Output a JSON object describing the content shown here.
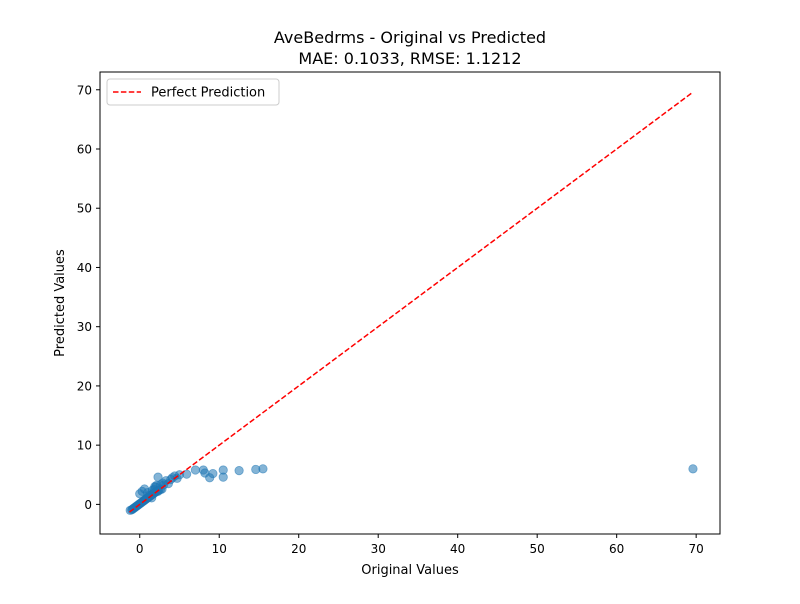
{
  "chart_data": {
    "type": "scatter",
    "title": "AveBedrms - Original vs Predicted",
    "subtitle": "MAE: 0.1033, RMSE: 1.1212",
    "xlabel": "Original Values",
    "ylabel": "Predicted Values",
    "xlim": [
      -5,
      73
    ],
    "ylim": [
      -5,
      73
    ],
    "xticks": [
      0,
      10,
      20,
      30,
      40,
      50,
      60,
      70
    ],
    "yticks": [
      0,
      10,
      20,
      30,
      40,
      50,
      60,
      70
    ],
    "grid": false,
    "legend": {
      "location": "upper-left",
      "entries": [
        "Perfect Prediction"
      ]
    },
    "reference_line": {
      "name": "Perfect Prediction",
      "from": [
        -1.3,
        -1.3
      ],
      "to": [
        69.6,
        69.6
      ],
      "color": "#ff0000",
      "style": "dashed"
    },
    "series": [
      {
        "color": "#1f77b4",
        "x": [
          -1.2,
          -1.0,
          -0.9,
          -0.8,
          -0.7,
          -0.6,
          -0.5,
          -0.4,
          -0.3,
          -0.2,
          -0.1,
          0.0,
          0.1,
          0.2,
          0.3,
          0.4,
          0.5,
          0.6,
          0.7,
          0.8,
          0.9,
          1.0,
          1.1,
          1.2,
          1.3,
          1.4,
          1.5,
          1.6,
          1.7,
          1.8,
          1.9,
          2.0,
          2.1,
          2.2,
          2.4,
          2.6,
          2.8,
          0.0,
          0.3,
          0.6,
          1.0,
          1.3,
          1.6,
          1.9,
          2.1,
          2.3,
          2.0,
          1.8,
          1.5,
          2.3,
          2.6,
          2.9,
          3.0,
          3.3,
          3.6,
          3.9,
          4.1,
          4.4,
          4.7,
          5.0,
          5.9,
          7.0,
          8.0,
          8.2,
          8.8,
          9.2,
          10.5,
          10.5,
          12.5,
          14.6,
          15.5,
          69.6
        ],
        "y": [
          -1.0,
          -0.9,
          -0.8,
          -0.7,
          -0.6,
          -0.5,
          -0.4,
          -0.3,
          -0.2,
          -0.1,
          0.0,
          0.1,
          0.2,
          0.3,
          0.4,
          0.5,
          0.6,
          0.7,
          0.8,
          0.9,
          1.0,
          1.1,
          1.2,
          1.3,
          1.4,
          1.5,
          1.6,
          1.7,
          1.8,
          1.9,
          2.0,
          2.1,
          2.2,
          2.3,
          2.4,
          2.5,
          2.6,
          1.8,
          2.2,
          2.6,
          2.0,
          1.6,
          2.4,
          3.0,
          3.2,
          4.6,
          2.9,
          2.5,
          1.1,
          2.2,
          3.3,
          3.6,
          3.3,
          4.0,
          3.5,
          4.2,
          4.5,
          4.8,
          4.4,
          5.0,
          5.1,
          5.8,
          5.8,
          5.3,
          4.5,
          5.2,
          5.8,
          4.6,
          5.7,
          5.9,
          6.0,
          6.0
        ]
      }
    ]
  }
}
